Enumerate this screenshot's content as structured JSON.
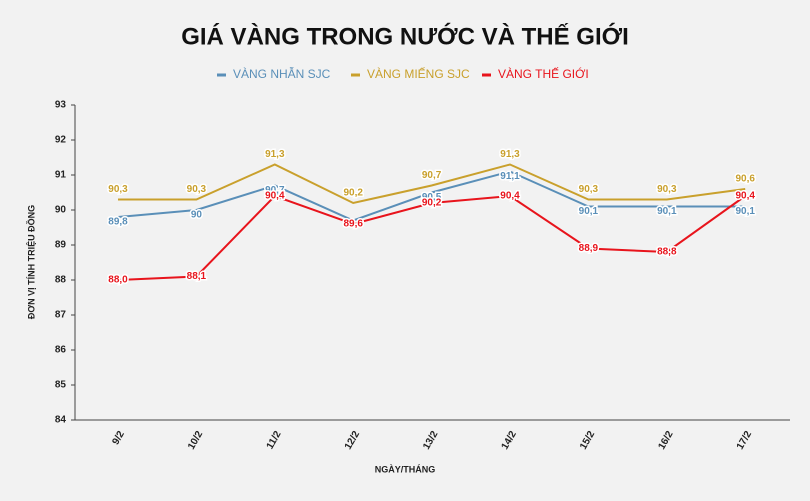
{
  "chart_data": {
    "type": "line",
    "title": "GIÁ VÀNG TRONG NƯỚC VÀ THẾ GIỚI",
    "x_label": "NGÀY/THÁNG",
    "y_label": "ĐƠN VỊ TÍNH TRIỆU ĐỒNG",
    "categories": [
      "9/2",
      "10/2",
      "11/2",
      "12/2",
      "13/2",
      "14/2",
      "15/2",
      "16/2",
      "17/2"
    ],
    "ylim": [
      84,
      93
    ],
    "yticks": [
      84,
      85,
      86,
      87,
      88,
      89,
      90,
      91,
      92,
      93
    ],
    "grid": false,
    "legend": "top",
    "series": [
      {
        "name": "VÀNG NHẪN SJC",
        "color": "#5a8fb8",
        "values": [
          89.8,
          90,
          90.7,
          89.7,
          90.5,
          91.1,
          90.1,
          90.1,
          90.1
        ],
        "value_labels": [
          "89,8",
          "90",
          "90,7",
          null,
          "90,5",
          "91,1",
          "90,1",
          "90,1",
          "90,1"
        ]
      },
      {
        "name": "VÀNG MIẾNG SJC",
        "color": "#c9a02c",
        "values": [
          90.3,
          90.3,
          91.3,
          90.2,
          90.7,
          91.3,
          90.3,
          90.3,
          90.6
        ],
        "value_labels": [
          "90,3",
          "90,3",
          "91,3",
          "90,2",
          "90,7",
          "91,3",
          "90,3",
          "90,3",
          "90,6"
        ]
      },
      {
        "name": "VÀNG THẾ GIỚI",
        "color": "#e8141c",
        "values": [
          88.0,
          88.1,
          90.4,
          89.6,
          90.2,
          90.4,
          88.9,
          88.8,
          90.4
        ],
        "value_labels": [
          "88,0",
          "88,1",
          "90,4",
          "89,6",
          "90,2",
          "90,4",
          "88,9",
          "88,8",
          "90,4"
        ]
      }
    ]
  }
}
